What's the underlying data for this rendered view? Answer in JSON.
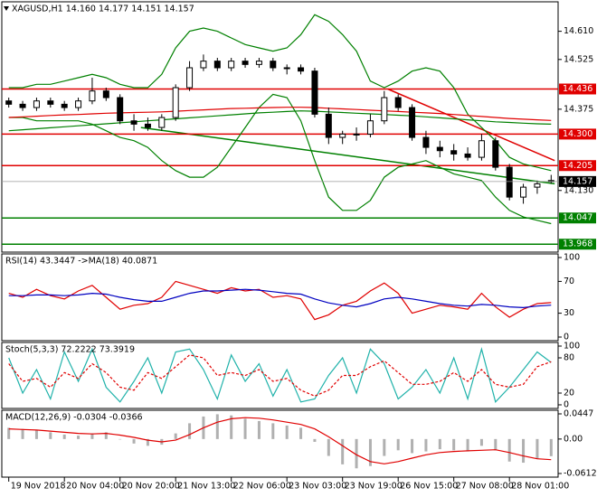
{
  "chart_data": [
    {
      "type": "candlestick",
      "title": "XAGUSD,H1  14.160 14.177 14.151 14.157",
      "xlim": [
        -2,
        158
      ],
      "x": [
        0,
        4,
        8,
        12,
        16,
        20,
        24,
        28,
        32,
        36,
        40,
        44,
        48,
        52,
        56,
        60,
        64,
        68,
        72,
        76,
        80,
        84,
        88,
        92,
        96,
        100,
        104,
        108,
        112,
        116,
        120,
        124,
        128,
        132,
        136,
        140,
        144,
        148,
        152,
        156
      ],
      "open": [
        14.4,
        14.39,
        14.38,
        14.4,
        14.39,
        14.38,
        14.4,
        14.43,
        14.41,
        14.34,
        14.33,
        14.32,
        14.35,
        14.44,
        14.5,
        14.52,
        14.5,
        14.52,
        14.51,
        14.52,
        14.5,
        14.5,
        14.49,
        14.36,
        14.29,
        14.3,
        14.3,
        14.34,
        14.41,
        14.38,
        14.29,
        14.26,
        14.25,
        14.24,
        14.23,
        14.28,
        14.2,
        14.11,
        14.14,
        14.16
      ],
      "high": [
        14.41,
        14.4,
        14.41,
        14.41,
        14.4,
        14.41,
        14.47,
        14.44,
        14.42,
        14.36,
        14.35,
        14.36,
        14.45,
        14.52,
        14.54,
        14.53,
        14.53,
        14.53,
        14.53,
        14.53,
        14.51,
        14.51,
        14.5,
        14.38,
        14.31,
        14.32,
        14.36,
        14.43,
        14.42,
        14.39,
        14.31,
        14.28,
        14.27,
        14.26,
        14.3,
        14.29,
        14.21,
        14.15,
        14.16,
        14.177
      ],
      "low": [
        14.38,
        14.37,
        14.37,
        14.38,
        14.37,
        14.37,
        14.39,
        14.4,
        14.33,
        14.31,
        14.31,
        14.31,
        14.34,
        14.43,
        14.49,
        14.49,
        14.49,
        14.5,
        14.5,
        14.49,
        14.48,
        14.48,
        14.35,
        14.27,
        14.27,
        14.28,
        14.29,
        14.33,
        14.37,
        14.28,
        14.24,
        14.23,
        14.22,
        14.22,
        14.22,
        14.19,
        14.1,
        14.09,
        14.12,
        14.151
      ],
      "close": [
        14.39,
        14.38,
        14.4,
        14.39,
        14.38,
        14.4,
        14.43,
        14.41,
        14.34,
        14.33,
        14.32,
        14.35,
        14.44,
        14.5,
        14.52,
        14.5,
        14.52,
        14.51,
        14.52,
        14.5,
        14.5,
        14.49,
        14.36,
        14.29,
        14.3,
        14.3,
        14.34,
        14.41,
        14.38,
        14.29,
        14.26,
        14.25,
        14.24,
        14.23,
        14.28,
        14.2,
        14.11,
        14.14,
        14.15,
        14.157
      ],
      "series": [
        {
          "color": "#008000",
          "values": [
            14.44,
            14.44,
            14.45,
            14.45,
            14.46,
            14.47,
            14.48,
            14.47,
            14.45,
            14.44,
            14.44,
            14.48,
            14.56,
            14.61,
            14.62,
            14.61,
            14.59,
            14.57,
            14.56,
            14.55,
            14.56,
            14.6,
            14.66,
            14.64,
            14.6,
            14.55,
            14.46,
            14.44,
            14.46,
            14.49,
            14.5,
            14.49,
            14.44,
            14.36,
            14.32,
            14.28,
            14.23,
            14.21,
            14.2,
            14.19
          ]
        },
        {
          "color": "#008000",
          "values": [
            14.35,
            14.35,
            14.34,
            14.34,
            14.34,
            14.34,
            14.33,
            14.31,
            14.29,
            14.28,
            14.26,
            14.22,
            14.19,
            14.17,
            14.17,
            14.2,
            14.26,
            14.32,
            14.38,
            14.42,
            14.41,
            14.34,
            14.22,
            14.11,
            14.07,
            14.07,
            14.1,
            14.17,
            14.2,
            14.21,
            14.22,
            14.2,
            14.18,
            14.17,
            14.16,
            14.11,
            14.07,
            14.05,
            14.04,
            14.03
          ]
        },
        {
          "color": "#e00000",
          "values": [
            14.35,
            14.352,
            14.354,
            14.356,
            14.358,
            14.359,
            14.361,
            14.363,
            14.364,
            14.365,
            14.366,
            14.367,
            14.369,
            14.371,
            14.373,
            14.375,
            14.377,
            14.378,
            14.379,
            14.38,
            14.381,
            14.381,
            14.38,
            14.378,
            14.376,
            14.374,
            14.372,
            14.37,
            14.368,
            14.366,
            14.364,
            14.362,
            14.359,
            14.356,
            14.353,
            14.35,
            14.347,
            14.345,
            14.343,
            14.341
          ]
        },
        {
          "color": "#008000",
          "values": [
            14.31,
            14.313,
            14.316,
            14.319,
            14.322,
            14.325,
            14.328,
            14.331,
            14.334,
            14.337,
            14.34,
            14.343,
            14.346,
            14.349,
            14.352,
            14.355,
            14.358,
            14.361,
            14.364,
            14.366,
            14.368,
            14.37,
            14.369,
            14.367,
            14.365,
            14.363,
            14.361,
            14.359,
            14.357,
            14.355,
            14.352,
            14.349,
            14.346,
            14.343,
            14.34,
            14.337,
            14.335,
            14.333,
            14.331,
            14.33
          ]
        }
      ],
      "trendlines": [
        {
          "color": "#e00000",
          "x": [
            109,
            157
          ],
          "y": [
            14.436,
            14.22
          ]
        },
        {
          "color": "#008000",
          "x": [
            38,
            157
          ],
          "y": [
            14.32,
            14.15
          ]
        }
      ],
      "levels": {
        "values": [
          14.436,
          14.3,
          14.205,
          14.047,
          13.968
        ],
        "value_labels": [
          "14.436",
          "14.300",
          "14.205",
          "14.047",
          "13.968"
        ],
        "colors": [
          "#e00000",
          "#e00000",
          "#e00000",
          "#008000",
          "#008000"
        ]
      },
      "last_price": 14.157,
      "ylim": [
        13.955,
        14.688
      ],
      "yticks": [
        {
          "value": 14.61,
          "label": "14.610"
        },
        14.525,
        14.375,
        {
          "value": 14.13,
          "label": "14.130"
        }
      ]
    },
    {
      "type": "line",
      "title": "RSI(14) 43.3447 ->MA(18) 40.0871",
      "xlim": [
        -2,
        158
      ],
      "x": [
        0,
        4,
        8,
        12,
        16,
        20,
        24,
        28,
        32,
        36,
        40,
        44,
        48,
        52,
        56,
        60,
        64,
        68,
        72,
        76,
        80,
        84,
        88,
        92,
        96,
        100,
        104,
        108,
        112,
        116,
        120,
        124,
        128,
        132,
        136,
        140,
        144,
        148,
        152,
        156
      ],
      "series": [
        {
          "color": "#e00000",
          "values": [
            55,
            50,
            60,
            52,
            48,
            58,
            65,
            50,
            35,
            40,
            42,
            50,
            70,
            65,
            60,
            55,
            62,
            58,
            60,
            50,
            52,
            48,
            22,
            28,
            40,
            45,
            58,
            68,
            55,
            30,
            35,
            40,
            38,
            35,
            55,
            38,
            25,
            35,
            42,
            43.3447
          ]
        },
        {
          "color": "#0000c0",
          "values": [
            52,
            52,
            53,
            53,
            52,
            53,
            55,
            54,
            50,
            47,
            45,
            45,
            50,
            55,
            58,
            58,
            59,
            60,
            59,
            57,
            55,
            54,
            48,
            43,
            40,
            38,
            42,
            48,
            50,
            48,
            45,
            42,
            40,
            39,
            41,
            40,
            38,
            37,
            39,
            40.0871
          ]
        }
      ],
      "ylim": [
        0,
        100
      ],
      "yticks": [
        0,
        30,
        70,
        100
      ]
    },
    {
      "type": "line",
      "title": "Stoch(5,3,3) 72.2222 73.3919",
      "xlim": [
        -2,
        158
      ],
      "x": [
        0,
        4,
        8,
        12,
        16,
        20,
        24,
        28,
        32,
        36,
        40,
        44,
        48,
        52,
        56,
        60,
        64,
        68,
        72,
        76,
        80,
        84,
        88,
        92,
        96,
        100,
        104,
        108,
        112,
        116,
        120,
        124,
        128,
        132,
        136,
        140,
        144,
        148,
        152,
        156
      ],
      "series": [
        {
          "color": "#20b2aa",
          "values": [
            80,
            20,
            60,
            10,
            90,
            40,
            95,
            30,
            5,
            40,
            80,
            20,
            90,
            95,
            60,
            10,
            85,
            40,
            70,
            15,
            60,
            5,
            10,
            50,
            80,
            20,
            95,
            70,
            10,
            30,
            60,
            20,
            80,
            10,
            95,
            5,
            30,
            60,
            90,
            72.2222
          ]
        },
        {
          "color": "#e00000",
          "dash": true,
          "values": [
            70,
            40,
            45,
            30,
            55,
            45,
            70,
            55,
            30,
            25,
            55,
            45,
            65,
            85,
            80,
            50,
            55,
            50,
            60,
            40,
            45,
            25,
            15,
            25,
            50,
            50,
            65,
            75,
            55,
            35,
            35,
            40,
            55,
            40,
            60,
            35,
            30,
            35,
            65,
            73.3919
          ]
        }
      ],
      "ylim": [
        0,
        100
      ],
      "yticks": [
        0,
        20,
        80,
        100
      ]
    },
    {
      "type": "combo",
      "title": "MACD(12,26,9) -0.0304 -0.0366",
      "xlim": [
        -2,
        158
      ],
      "x": [
        0,
        4,
        8,
        12,
        16,
        20,
        24,
        28,
        32,
        36,
        40,
        44,
        48,
        52,
        56,
        60,
        64,
        68,
        72,
        76,
        80,
        84,
        88,
        92,
        96,
        100,
        104,
        108,
        112,
        116,
        120,
        124,
        128,
        132,
        136,
        140,
        144,
        148,
        152,
        156
      ],
      "series": [
        {
          "type": "bar",
          "color": "#b0b0b0",
          "values": [
            0.02,
            0.018,
            0.016,
            0.012,
            0.008,
            0.006,
            0.01,
            0.012,
            0.0,
            -0.008,
            -0.012,
            -0.01,
            0.01,
            0.028,
            0.04,
            0.044,
            0.042,
            0.036,
            0.032,
            0.028,
            0.024,
            0.02,
            -0.005,
            -0.03,
            -0.045,
            -0.052,
            -0.048,
            -0.03,
            -0.02,
            -0.025,
            -0.022,
            -0.018,
            -0.02,
            -0.022,
            -0.012,
            -0.02,
            -0.04,
            -0.042,
            -0.035,
            -0.0304
          ]
        },
        {
          "type": "line",
          "color": "#e00000",
          "values": [
            0.018,
            0.017,
            0.016,
            0.014,
            0.012,
            0.01,
            0.009,
            0.01,
            0.007,
            0.003,
            -0.002,
            -0.005,
            -0.002,
            0.008,
            0.02,
            0.03,
            0.036,
            0.038,
            0.037,
            0.034,
            0.03,
            0.026,
            0.018,
            0.004,
            -0.012,
            -0.028,
            -0.04,
            -0.044,
            -0.04,
            -0.034,
            -0.028,
            -0.024,
            -0.022,
            -0.021,
            -0.02,
            -0.019,
            -0.024,
            -0.03,
            -0.035,
            -0.0366
          ]
        }
      ],
      "ylim": [
        -0.0612,
        0.0447
      ],
      "yticks": [
        -0.0612,
        {
          "value": 0,
          "label": "0.00"
        },
        0.0447
      ],
      "xticks": [
        {
          "value": 0,
          "label": "19 Nov 2018"
        },
        {
          "value": 16,
          "label": "20 Nov 04:00"
        },
        {
          "value": 32,
          "label": "20 Nov 20:00"
        },
        {
          "value": 48,
          "label": "21 Nov 13:00"
        },
        {
          "value": 64,
          "label": "22 Nov 06:00"
        },
        {
          "value": 80,
          "label": "23 Nov 03:00"
        },
        {
          "value": 96,
          "label": "23 Nov 19:00"
        },
        {
          "value": 112,
          "label": "26 Nov 15:00"
        },
        {
          "value": 128,
          "label": "27 Nov 08:00"
        },
        {
          "value": 144,
          "label": "28 Nov 01:00"
        }
      ]
    }
  ]
}
